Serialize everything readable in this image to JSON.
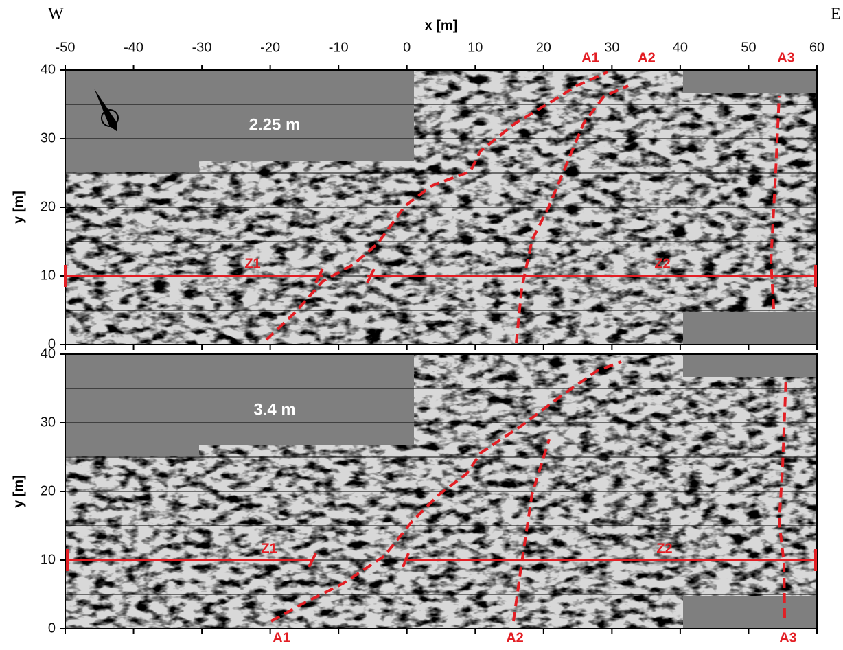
{
  "figure": {
    "west": "W",
    "east": "E"
  },
  "chart_data": [
    {
      "type": "image",
      "xlabel": "x [m]",
      "ylabel": "y [m]",
      "depth_label": "2.25 m",
      "xlim": [
        -50,
        60
      ],
      "ylim": [
        0,
        40
      ],
      "xticks": [
        -50,
        -40,
        -30,
        -20,
        -10,
        0,
        10,
        20,
        30,
        40,
        50,
        60
      ],
      "yticks": [
        0,
        10,
        20,
        30,
        40
      ],
      "grid_lines": [
        5,
        10,
        15,
        20,
        25,
        30,
        35
      ],
      "annotations": [
        "A1",
        "A2",
        "A3",
        "Z1",
        "Z2"
      ]
    },
    {
      "type": "image",
      "ylabel": "y [m]",
      "depth_label": "3.4 m",
      "xlim": [
        -50,
        60
      ],
      "ylim": [
        0,
        40
      ],
      "xticks": [
        -50,
        -40,
        -30,
        -20,
        -10,
        0,
        10,
        20,
        30,
        40,
        50,
        60
      ],
      "yticks": [
        0,
        10,
        20,
        30,
        40
      ],
      "grid_lines": [
        5,
        10,
        15,
        20,
        25,
        30,
        35
      ],
      "annotations": [
        "A1",
        "A2",
        "A3",
        "Z1",
        "Z2"
      ]
    }
  ]
}
